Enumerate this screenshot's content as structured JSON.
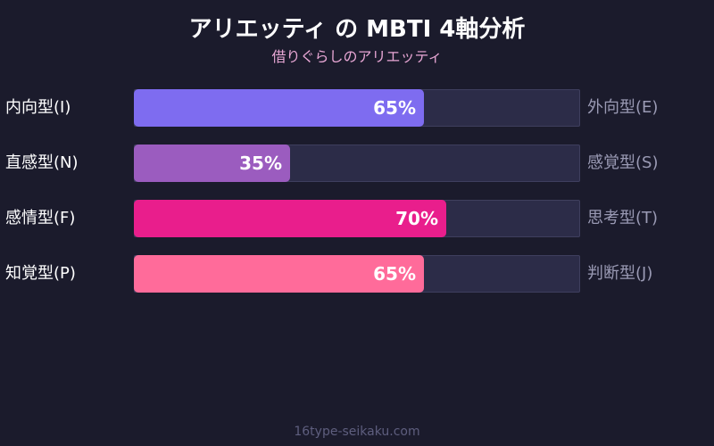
{
  "title": "アリエッティ の MBTI 4軸分析",
  "subtitle": "借りぐらしのアリエッティ",
  "footer": "16type-seikaku.com",
  "colors": {
    "background": "#1b1b2c",
    "track": "#2c2c48",
    "subtitle": "#e7a6d4",
    "right_label": "#9a9ab4"
  },
  "chart_data": {
    "type": "bar",
    "orientation": "horizontal",
    "xlim": [
      0,
      100
    ],
    "unit": "%",
    "rows": [
      {
        "left": "内向型(I)",
        "right": "外向型(E)",
        "value": 65,
        "label": "65%",
        "color": "#7e6cf0"
      },
      {
        "left": "直感型(N)",
        "right": "感覚型(S)",
        "value": 35,
        "label": "35%",
        "color": "#9b5cbf"
      },
      {
        "left": "感情型(F)",
        "right": "思考型(T)",
        "value": 70,
        "label": "70%",
        "color": "#e91e8c"
      },
      {
        "left": "知覚型(P)",
        "right": "判断型(J)",
        "value": 65,
        "label": "65%",
        "color": "#ff6b9a"
      }
    ]
  }
}
